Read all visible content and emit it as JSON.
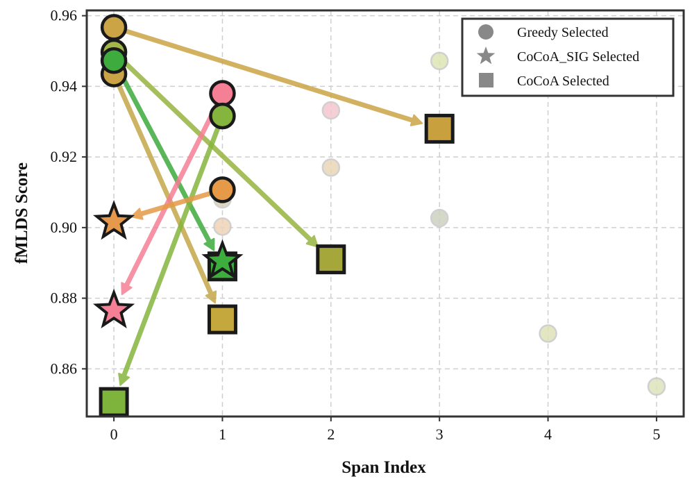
{
  "chart_data": {
    "type": "scatter",
    "xlabel": "Span Index",
    "ylabel": "fMLDS Score",
    "xlim": [
      -0.25,
      5.25
    ],
    "ylim": [
      0.8465,
      0.9615
    ],
    "xticks": [
      0,
      1,
      2,
      3,
      4,
      5
    ],
    "yticks": [
      0.86,
      0.88,
      0.9,
      0.92,
      0.94,
      0.96
    ],
    "ytick_labels": [
      "0.86",
      "0.88",
      "0.90",
      "0.92",
      "0.94",
      "0.96"
    ],
    "grid": true,
    "legend_position": "top-right",
    "legend": [
      {
        "marker": "circle",
        "label": "Greedy Selected"
      },
      {
        "marker": "star",
        "label": "CoCoA_SIG Selected"
      },
      {
        "marker": "square",
        "label": "CoCoA Selected"
      }
    ],
    "faded_points": [
      {
        "x": 1,
        "y": 0.908,
        "color": "#d9d2b8"
      },
      {
        "x": 1,
        "y": 0.9003,
        "color": "#f0d4b8"
      },
      {
        "x": 2,
        "y": 0.9332,
        "color": "#f5c7cf"
      },
      {
        "x": 2,
        "y": 0.917,
        "color": "#e9d6b8"
      },
      {
        "x": 3,
        "y": 0.9472,
        "color": "#dde6b4"
      },
      {
        "x": 3,
        "y": 0.9027,
        "color": "#ccd2c0"
      },
      {
        "x": 4,
        "y": 0.87,
        "color": "#dde3b8"
      },
      {
        "x": 5,
        "y": 0.855,
        "color": "#dde3bc"
      }
    ],
    "arrows": [
      {
        "from": [
          0,
          0.9567
        ],
        "to": [
          3,
          0.928
        ],
        "color": "#cba446"
      },
      {
        "from": [
          0,
          0.9435
        ],
        "to": [
          1,
          0.874
        ],
        "color": "#c4a84a"
      },
      {
        "from": [
          0,
          0.9497
        ],
        "to": [
          2,
          0.891
        ],
        "color": "#97b440"
      },
      {
        "from": [
          0,
          0.9473
        ],
        "to": [
          1,
          0.889
        ],
        "color": "#3dab3d"
      },
      {
        "from": [
          1,
          0.938
        ],
        "to": [
          0,
          0.8765
        ],
        "color": "#f57f95"
      },
      {
        "from": [
          1,
          0.9316
        ],
        "to": [
          0,
          0.8506
        ],
        "color": "#86b53e"
      },
      {
        "from": [
          1,
          0.9107
        ],
        "to": [
          0,
          0.9016
        ],
        "color": "#e69a47"
      }
    ],
    "greedy_points": [
      {
        "x": 0,
        "y": 0.9435,
        "color": "#c9a346"
      },
      {
        "x": 0,
        "y": 0.9497,
        "color": "#a3b64a"
      },
      {
        "x": 0,
        "y": 0.9567,
        "color": "#cba446"
      },
      {
        "x": 0,
        "y": 0.9473,
        "color": "#3dab3d"
      },
      {
        "x": 1,
        "y": 0.938,
        "color": "#f57f95"
      },
      {
        "x": 1,
        "y": 0.9316,
        "color": "#86b53e"
      },
      {
        "x": 1,
        "y": 0.9107,
        "color": "#e69a47"
      }
    ],
    "cocoa_points": [
      {
        "x": 3,
        "y": 0.928,
        "color": "#c9a03e"
      },
      {
        "x": 2,
        "y": 0.891,
        "color": "#a6a73a"
      },
      {
        "x": 1,
        "y": 0.874,
        "color": "#c4a83e"
      },
      {
        "x": 0,
        "y": 0.8506,
        "color": "#7fb43c"
      },
      {
        "x": 1,
        "y": 0.889,
        "color": "#3dae3d"
      }
    ],
    "star_points": [
      {
        "x": 1,
        "y": 0.8905,
        "color": "#3dae3d"
      },
      {
        "x": 0,
        "y": 0.9016,
        "color": "#e6994a"
      },
      {
        "x": 0,
        "y": 0.8765,
        "color": "#f57f95"
      }
    ]
  }
}
